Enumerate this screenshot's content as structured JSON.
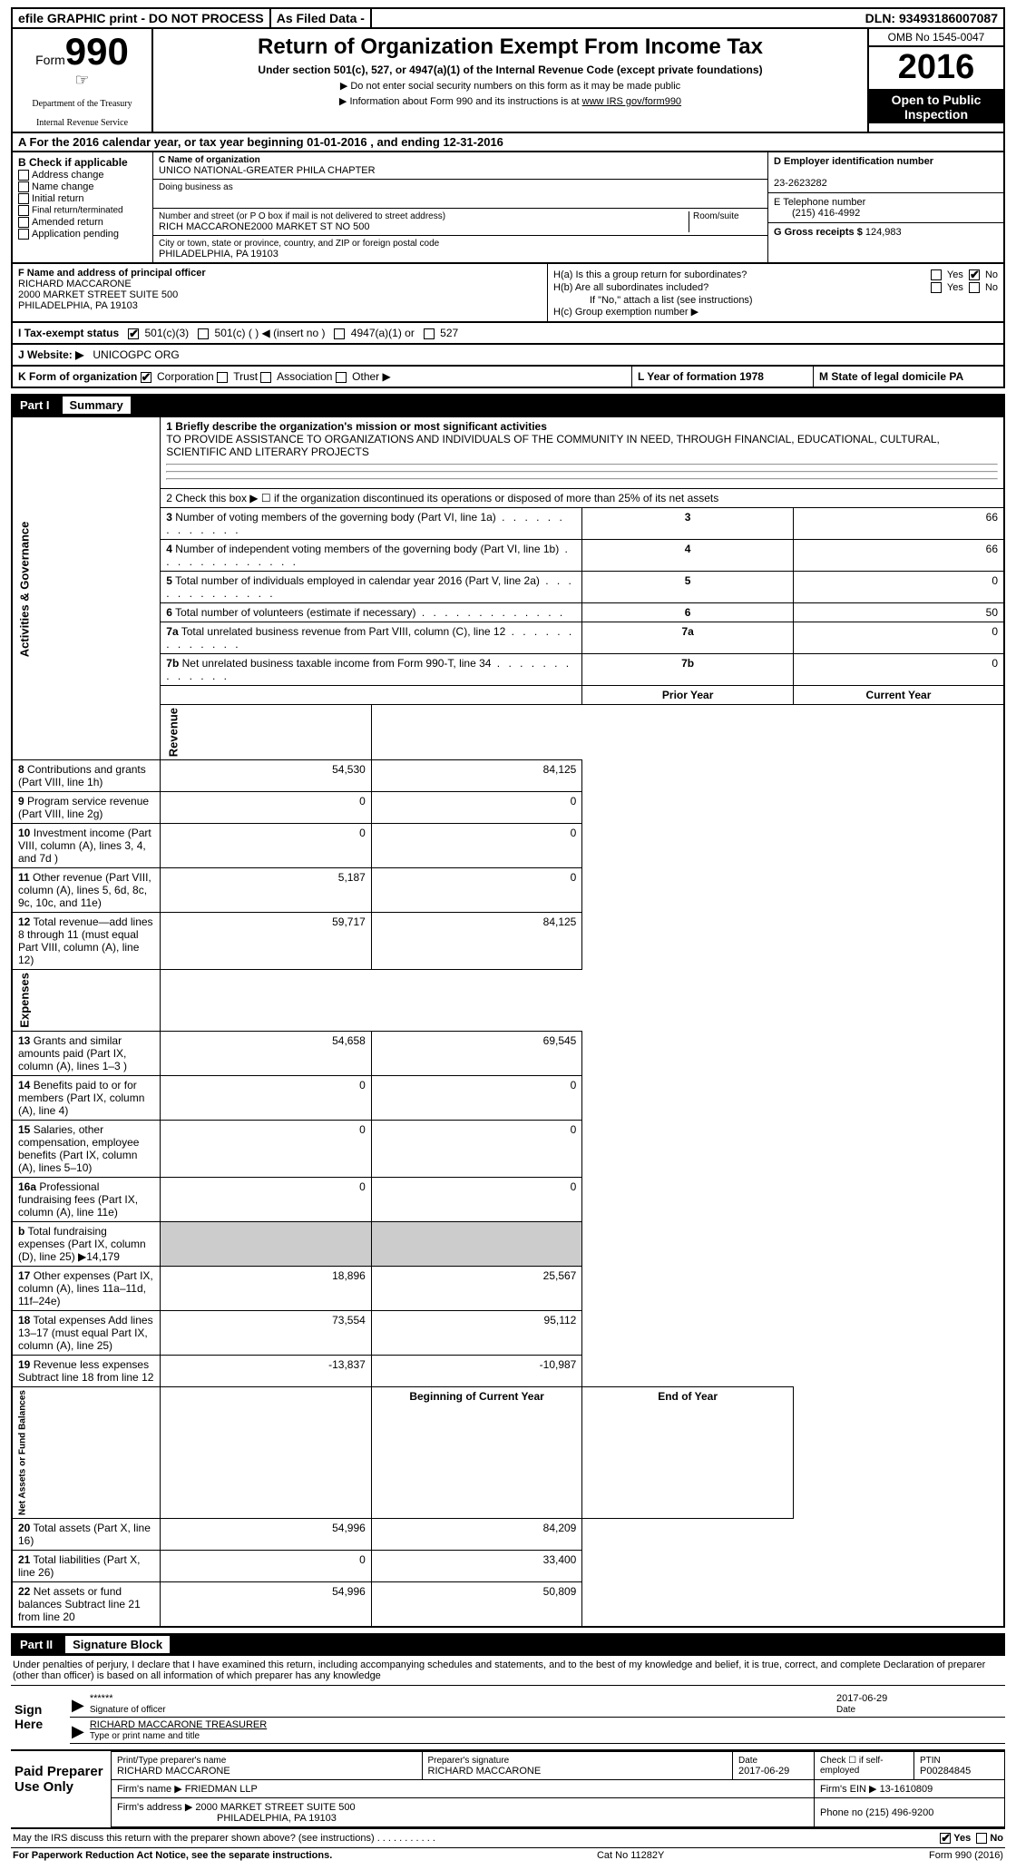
{
  "topbar": {
    "efile": "efile GRAPHIC print - DO NOT PROCESS",
    "asfiled": "As Filed Data -",
    "dln_label": "DLN:",
    "dln": "93493186007087"
  },
  "header": {
    "form_label": "Form",
    "form_no": "990",
    "dept1": "Department of the Treasury",
    "dept2": "Internal Revenue Service",
    "title": "Return of Organization Exempt From Income Tax",
    "subtitle": "Under section 501(c), 527, or 4947(a)(1) of the Internal Revenue Code (except private foundations)",
    "arrow1": "▶ Do not enter social security numbers on this form as it may be made public",
    "arrow2_pre": "▶ Information about Form 990 and its instructions is at ",
    "arrow2_link": "www IRS gov/form990",
    "omb": "OMB No  1545-0047",
    "year": "2016",
    "open": "Open to Public Inspection"
  },
  "rowA": "A   For the 2016 calendar year, or tax year beginning 01-01-2016   , and ending 12-31-2016",
  "colB": {
    "hdr": "B Check if applicable",
    "items": [
      "Address change",
      "Name change",
      "Initial return",
      "Final return/terminated",
      "Amended return",
      "Application pending"
    ]
  },
  "colC": {
    "name_lbl": "C Name of organization",
    "name": "UNICO NATIONAL-GREATER PHILA CHAPTER",
    "dba_lbl": "Doing business as",
    "dba": "",
    "addr_lbl": "Number and street (or P O  box if mail is not delivered to street address)",
    "room_lbl": "Room/suite",
    "addr": "RICH MACCARONE2000 MARKET ST NO 500",
    "city_lbl": "City or town, state or province, country, and ZIP or foreign postal code",
    "city": "PHILADELPHIA, PA  19103"
  },
  "colD": {
    "ein_lbl": "D Employer identification number",
    "ein": "23-2623282",
    "tel_lbl": "E Telephone number",
    "tel": "(215) 416-4992",
    "gross_lbl": "G Gross receipts $",
    "gross": "124,983"
  },
  "colF": {
    "lbl": "F  Name and address of principal officer",
    "l1": "RICHARD MACCARONE",
    "l2": "2000 MARKET STREET SUITE 500",
    "l3": "PHILADELPHIA, PA  19103"
  },
  "colH": {
    "ha_lbl": "H(a)  Is this a group return for subordinates?",
    "hb_lbl": "H(b)  Are all subordinates included?",
    "hb_note": "If \"No,\" attach a list  (see instructions)",
    "hc_lbl": "H(c)  Group exemption number ▶",
    "yes": "Yes",
    "no": "No"
  },
  "rowI": {
    "lbl": "I   Tax-exempt status",
    "o1": "501(c)(3)",
    "o2": "501(c) (   ) ◀ (insert no )",
    "o3": "4947(a)(1) or",
    "o4": "527"
  },
  "rowJ": {
    "lbl": "J   Website: ▶",
    "val": "UNICOGPC ORG"
  },
  "rowK": {
    "lbl": "K Form of organization",
    "o1": "Corporation",
    "o2": "Trust",
    "o3": "Association",
    "o4": "Other ▶",
    "L": "L Year of formation  1978",
    "M": "M State of legal domicile  PA"
  },
  "part1": {
    "num": "Part I",
    "title": "Summary"
  },
  "summary": {
    "l1_lbl": "1  Briefly describe the organization's mission or most significant activities",
    "l1_txt": "TO PROVIDE ASSISTANCE TO ORGANIZATIONS AND INDIVIDUALS OF THE COMMUNITY IN NEED, THROUGH FINANCIAL, EDUCATIONAL, CULTURAL, SCIENTIFIC AND LITERARY PROJECTS",
    "l2": "2   Check this box ▶ ☐  if the organization discontinued its operations or disposed of more than 25% of its net assets",
    "side_ag": "Activities & Governance",
    "side_rev": "Revenue",
    "side_exp": "Expenses",
    "side_net": "Net Assets or Fund Balances",
    "prior": "Prior Year",
    "current": "Current Year",
    "begin": "Beginning of Current Year",
    "end": "End of Year",
    "rows_simple": [
      {
        "n": "3",
        "d": "Number of voting members of the governing body (Part VI, line 1a)",
        "v": "66"
      },
      {
        "n": "4",
        "d": "Number of independent voting members of the governing body (Part VI, line 1b)",
        "v": "66"
      },
      {
        "n": "5",
        "d": "Total number of individuals employed in calendar year 2016 (Part V, line 2a)",
        "v": "0"
      },
      {
        "n": "6",
        "d": "Total number of volunteers (estimate if necessary)",
        "v": "50"
      },
      {
        "n": "7a",
        "d": "Total unrelated business revenue from Part VIII, column (C), line 12",
        "v": "0"
      },
      {
        "n": "7b",
        "d": "Net unrelated business taxable income from Form 990-T, line 34",
        "v": "0"
      }
    ],
    "rows_rev": [
      {
        "n": "8",
        "d": "Contributions and grants (Part VIII, line 1h)",
        "p": "54,530",
        "c": "84,125"
      },
      {
        "n": "9",
        "d": "Program service revenue (Part VIII, line 2g)",
        "p": "0",
        "c": "0"
      },
      {
        "n": "10",
        "d": "Investment income (Part VIII, column (A), lines 3, 4, and 7d )",
        "p": "0",
        "c": "0"
      },
      {
        "n": "11",
        "d": "Other revenue (Part VIII, column (A), lines 5, 6d, 8c, 9c, 10c, and 11e)",
        "p": "5,187",
        "c": "0"
      },
      {
        "n": "12",
        "d": "Total revenue—add lines 8 through 11 (must equal Part VIII, column (A), line 12)",
        "p": "59,717",
        "c": "84,125"
      }
    ],
    "rows_exp": [
      {
        "n": "13",
        "d": "Grants and similar amounts paid (Part IX, column (A), lines 1–3 )",
        "p": "54,658",
        "c": "69,545"
      },
      {
        "n": "14",
        "d": "Benefits paid to or for members (Part IX, column (A), line 4)",
        "p": "0",
        "c": "0"
      },
      {
        "n": "15",
        "d": "Salaries, other compensation, employee benefits (Part IX, column (A), lines 5–10)",
        "p": "0",
        "c": "0"
      },
      {
        "n": "16a",
        "d": "Professional fundraising fees (Part IX, column (A), line 11e)",
        "p": "0",
        "c": "0"
      },
      {
        "n": "b",
        "d": "Total fundraising expenses (Part IX, column (D), line 25) ▶14,179",
        "p": "",
        "c": ""
      },
      {
        "n": "17",
        "d": "Other expenses (Part IX, column (A), lines 11a–11d, 11f–24e)",
        "p": "18,896",
        "c": "25,567"
      },
      {
        "n": "18",
        "d": "Total expenses  Add lines 13–17 (must equal Part IX, column (A), line 25)",
        "p": "73,554",
        "c": "95,112"
      },
      {
        "n": "19",
        "d": "Revenue less expenses  Subtract line 18 from line 12",
        "p": "-13,837",
        "c": "-10,987"
      }
    ],
    "rows_net": [
      {
        "n": "20",
        "d": "Total assets (Part X, line 16)",
        "p": "54,996",
        "c": "84,209"
      },
      {
        "n": "21",
        "d": "Total liabilities (Part X, line 26)",
        "p": "0",
        "c": "33,400"
      },
      {
        "n": "22",
        "d": "Net assets or fund balances  Subtract line 21 from line 20",
        "p": "54,996",
        "c": "50,809"
      }
    ]
  },
  "part2": {
    "num": "Part II",
    "title": "Signature Block"
  },
  "sig": {
    "declare": "Under penalties of perjury, I declare that I have examined this return, including accompanying schedules and statements, and to the best of my knowledge and belief, it is true, correct, and complete  Declaration of preparer (other than officer) is based on all information of which preparer has any knowledge",
    "sign_here": "Sign Here",
    "stars": "******",
    "sig_lbl": "Signature of officer",
    "date": "2017-06-29",
    "date_lbl": "Date",
    "name": "RICHARD MACCARONE TREASURER",
    "name_lbl": "Type or print name and title"
  },
  "prep": {
    "title": "Paid Preparer Use Only",
    "h1": "Print/Type preparer's name",
    "h2": "Preparer's signature",
    "h3": "Date",
    "h4": "Check ☐ if self-employed",
    "h5": "PTIN",
    "name": "RICHARD MACCARONE",
    "sig": "RICHARD MACCARONE",
    "date": "2017-06-29",
    "ptin": "P00284845",
    "firm_lbl": "Firm's name   ▶",
    "firm": "FRIEDMAN LLP",
    "ein_lbl": "Firm's EIN ▶",
    "ein": "13-1610809",
    "addr_lbl": "Firm's address ▶",
    "addr1": "2000 MARKET STREET SUITE 500",
    "addr2": "PHILADELPHIA, PA  19103",
    "phone_lbl": "Phone no",
    "phone": "(215) 496-9200"
  },
  "bottom": {
    "q": "May the IRS discuss this return with the preparer shown above? (see instructions)",
    "yes": "Yes",
    "no": "No"
  },
  "footer": {
    "l": "For Paperwork Reduction Act Notice, see the separate instructions.",
    "m": "Cat No 11282Y",
    "r": "Form 990 (2016)"
  },
  "style": {
    "bg": "#ffffff",
    "black": "#000000",
    "font_main": "Arial",
    "font_serif": "Times New Roman"
  }
}
